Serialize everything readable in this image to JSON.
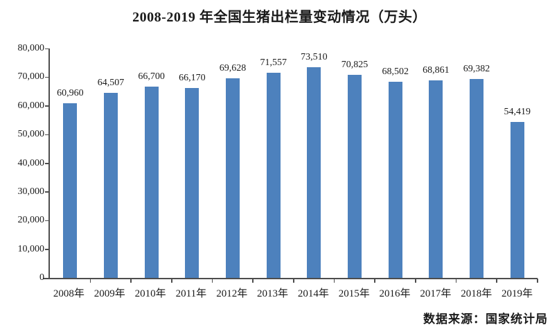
{
  "chart_data": {
    "type": "bar",
    "title": "2008-2019 年全国生猪出栏量变动情况（万头）",
    "categories": [
      "2008年",
      "2009年",
      "2010年",
      "2011年",
      "2012年",
      "2013年",
      "2014年",
      "2015年",
      "2016年",
      "2017年",
      "2018年",
      "2019年"
    ],
    "values": [
      60960,
      64507,
      66700,
      66170,
      69628,
      71557,
      73510,
      70825,
      68502,
      68861,
      69382,
      54419
    ],
    "value_labels": [
      "60,960",
      "64,507",
      "66,700",
      "66,170",
      "69,628",
      "71,557",
      "73,510",
      "70,825",
      "68,502",
      "68,861",
      "69,382",
      "54,419"
    ],
    "xlabel": "",
    "ylabel": "",
    "ylim": [
      0,
      80000
    ],
    "y_tick_step": 10000,
    "y_tick_labels": [
      "0",
      "10,000",
      "20,000",
      "30,000",
      "40,000",
      "50,000",
      "60,000",
      "70,000",
      "80,000"
    ],
    "grid": false,
    "legend": false,
    "bar_color": "#4d81bd",
    "axis_color": "#4d4d4d",
    "source": "数据来源：国家统计局"
  }
}
